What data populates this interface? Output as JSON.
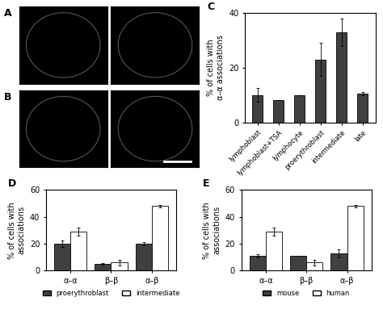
{
  "images": [
    {
      "panel_label": "A"
    },
    {
      "panel_label": "B"
    }
  ],
  "chart_data": [
    {
      "type": "bar",
      "panel_label": "C",
      "y_label": "% of cells with\nα–α associations",
      "categories": [
        "lymphoblast",
        "lymphoblast+TSA",
        "lymphocyte",
        "proerythroblast",
        "intermediate",
        "late"
      ],
      "values": [
        10,
        8,
        10,
        23,
        33,
        10.5
      ],
      "error": [
        2.5,
        0,
        0,
        6,
        5,
        0.5
      ],
      "color": "#404040",
      "ylim": [
        0,
        40
      ],
      "yticks": [
        0,
        20,
        40
      ]
    },
    {
      "type": "bar",
      "panel_label": "D",
      "y_label": "% of cells with\nassociations",
      "categories": [
        "α–α",
        "β–β",
        "α–β"
      ],
      "series": [
        {
          "name": "proerythroblast",
          "color": "#404040",
          "values": [
            20,
            5,
            20
          ],
          "error": [
            2.5,
            0.5,
            1
          ]
        },
        {
          "name": "intermediate",
          "color": "#ffffff",
          "values": [
            29,
            6,
            48
          ],
          "error": [
            3,
            2,
            1
          ]
        }
      ],
      "ylim": [
        0,
        60
      ],
      "yticks": [
        0,
        20,
        40,
        60
      ],
      "legend": "upper center"
    },
    {
      "type": "bar",
      "panel_label": "E",
      "y_label": "% of cells with\nassociations",
      "categories": [
        "α–α",
        "β–β",
        "α–β"
      ],
      "series": [
        {
          "name": "mouse",
          "color": "#404040",
          "values": [
            11,
            11,
            13
          ],
          "error": [
            1,
            0,
            3
          ]
        },
        {
          "name": "human",
          "color": "#ffffff",
          "values": [
            29,
            6,
            48
          ],
          "error": [
            3,
            2,
            1
          ]
        }
      ],
      "ylim": [
        0,
        60
      ],
      "yticks": [
        0,
        20,
        40,
        60
      ],
      "legend": "upper center"
    }
  ]
}
